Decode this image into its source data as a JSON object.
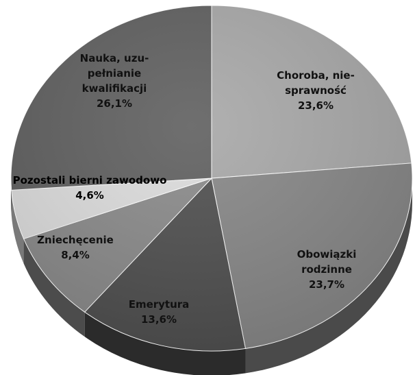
{
  "chart_data": {
    "type": "pie",
    "title": "",
    "slices": [
      {
        "label_lines": [
          "Choroba, nie-",
          "sprawność"
        ],
        "value": 23.6,
        "value_label": "23,6%",
        "color": "#a8a8a8"
      },
      {
        "label_lines": [
          "Obowiązki",
          "rodzinne"
        ],
        "value": 23.7,
        "value_label": "23,7%",
        "color": "#878787"
      },
      {
        "label_lines": [
          "Emerytura"
        ],
        "value": 13.6,
        "value_label": "13,6%",
        "color": "#4f4f4f"
      },
      {
        "label_lines": [
          "Zniechęcenie"
        ],
        "value": 8.4,
        "value_label": "8,4%",
        "color": "#8a8a8a"
      },
      {
        "label_lines": [
          "Pozostali bierni zawodowo"
        ],
        "value": 4.6,
        "value_label": "4,6%",
        "color": "#dcdcdc"
      },
      {
        "label_lines": [
          "Nauka, uzu-",
          "pełnianie",
          "kwalifikacji"
        ],
        "value": 26.1,
        "value_label": "26,1%",
        "color": "#5f5f5f"
      }
    ],
    "start": "top",
    "direction": "clockwise",
    "style": "3d"
  }
}
